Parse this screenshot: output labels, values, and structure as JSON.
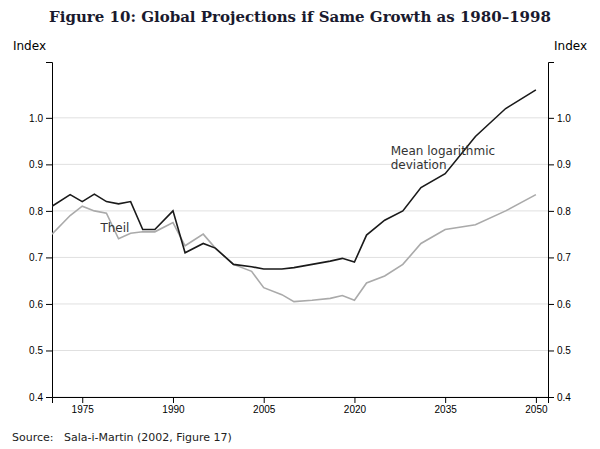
{
  "chart_data": {
    "type": "line",
    "title": "Figure 10: Global Projections if Same Growth as 1980–1998",
    "ylabel": "Index",
    "y2label": "Index",
    "source": "Source:   Sala-i-Martin (2002, Figure 17)",
    "x": [
      1970,
      1973,
      1975,
      1977,
      1979,
      1981,
      1983,
      1985,
      1987,
      1990,
      1992,
      1995,
      1997,
      2000,
      2003,
      2005,
      2008,
      2010,
      2013,
      2016,
      2018,
      2020,
      2022,
      2025,
      2028,
      2031,
      2035,
      2040,
      2045,
      2050
    ],
    "series": [
      {
        "color": "#1a1a1a",
        "values": [
          0.81,
          0.835,
          0.82,
          0.836,
          0.82,
          0.815,
          0.82,
          0.76,
          0.76,
          0.8,
          0.71,
          0.73,
          0.72,
          0.685,
          0.68,
          0.675,
          0.675,
          0.678,
          0.685,
          0.692,
          0.698,
          0.69,
          0.748,
          0.78,
          0.8,
          0.85,
          0.88,
          0.96,
          1.02,
          1.06
        ]
      },
      {
        "color": "#aaaaaa",
        "values": [
          0.75,
          0.79,
          0.81,
          0.8,
          0.795,
          0.74,
          0.752,
          0.755,
          0.755,
          0.775,
          0.725,
          0.75,
          0.72,
          0.685,
          0.67,
          0.635,
          0.62,
          0.605,
          0.608,
          0.612,
          0.618,
          0.608,
          0.645,
          0.66,
          0.685,
          0.73,
          0.76,
          0.77,
          0.8,
          0.835
        ]
      }
    ],
    "annotations": [
      {
        "text": "Theil",
        "x": 1978,
        "y": 0.775
      },
      {
        "text": "Mean logarithmic\ndeviation",
        "x": 2026,
        "y": 0.94
      }
    ],
    "xlim": [
      1970,
      2052
    ],
    "xticks": [
      1975,
      1990,
      2005,
      2020,
      2035,
      2050
    ],
    "ylim": [
      0.4,
      1.12
    ],
    "yticks": [
      0.4,
      0.5,
      0.6,
      0.7,
      0.8,
      0.9,
      {
        "value": 1.0,
        "label": "1.0"
      }
    ],
    "y2lim": [
      0.4,
      1.12
    ],
    "y2ticks": [
      0.4,
      0.5,
      0.6,
      0.7,
      0.8,
      0.9,
      {
        "value": 1.0,
        "label": "1.0"
      }
    ],
    "grid": true
  }
}
